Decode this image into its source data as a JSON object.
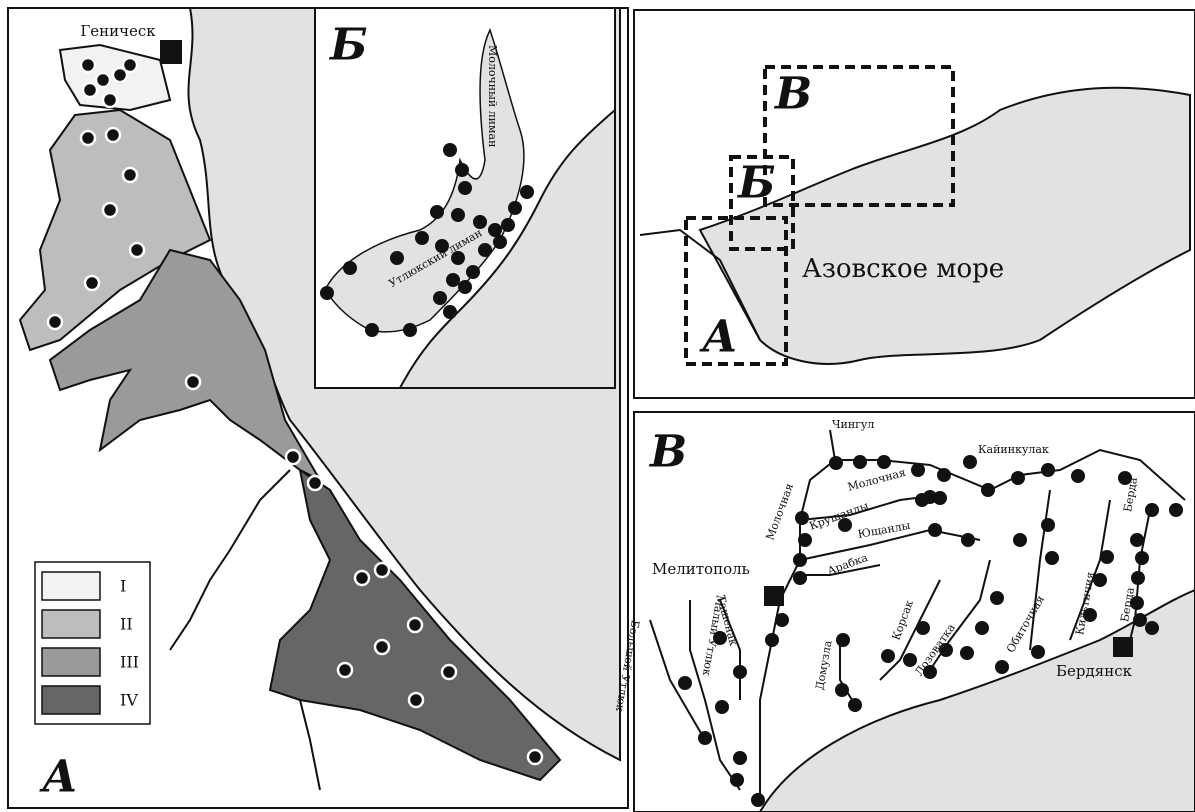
{
  "panel_a": {
    "label": "А",
    "city": "Геническ",
    "legend": [
      "I",
      "II",
      "III",
      "IV"
    ]
  },
  "panel_b": {
    "label": "Б",
    "lakes": [
      "Утлюкский лиман",
      "Молочный лиман"
    ]
  },
  "overview": {
    "boxes": [
      "В",
      "Б",
      "А"
    ],
    "sea": "Азовское море"
  },
  "panel_v": {
    "label": "В",
    "cities": [
      "Мелитополь",
      "Бердянск"
    ],
    "rivers": [
      "Чингул",
      "Кайинкулак",
      "Молочная",
      "Молочная",
      "Крушанлы",
      "Ющанлы",
      "Арабка",
      "Малый Утлюк",
      "Большой Утлюк",
      "Ташенак",
      "Домузла",
      "Корсак",
      "Лозоватка",
      "Обиточная",
      "Кильтичия",
      "Берда",
      "Берда"
    ]
  }
}
